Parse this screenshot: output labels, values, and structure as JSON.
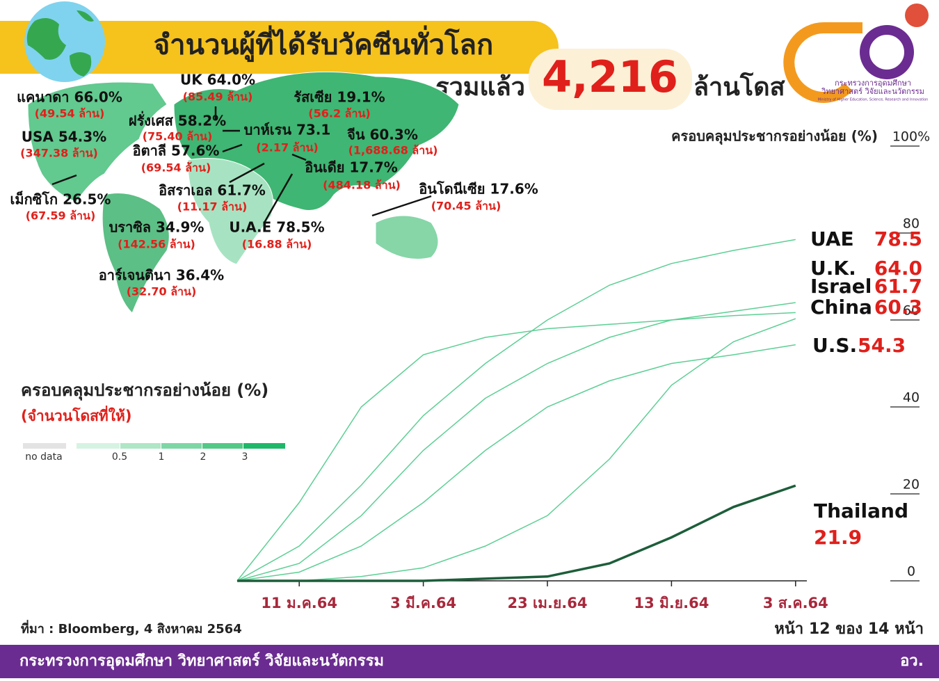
{
  "header": {
    "title": "จำนวนผู้ที่ได้รับวัคซีนทั่วโลก",
    "total_prefix": "รวมแล้ว",
    "total": "4,216",
    "total_unit": "ล้านโดส"
  },
  "logo": {
    "line1": "กระทรวงการอุดมศึกษา",
    "line2": "วิทยาศาสตร์ วิจัยและนวัตกรรม",
    "line3": "Ministry of Higher Education, Science, Research and Innovation"
  },
  "map": {
    "labels": [
      {
        "name": "UK 64.0%",
        "doses": "(85.49 ล้าน)"
      },
      {
        "name": "แคนาดา 66.0%",
        "doses": "(49.54 ล้าน)"
      },
      {
        "name": "รัสเซีย 19.1%",
        "doses": "(56.2 ล้าน)"
      },
      {
        "name": "ฝรั่งเศส 58.2%",
        "doses": "(75.40 ล้าน)"
      },
      {
        "name": "USA 54.3%",
        "doses": "(347.38 ล้าน)"
      },
      {
        "name": "บาห์เรน 73.1",
        "doses": "(2.17 ล้าน)"
      },
      {
        "name": "จีน 60.3%",
        "doses": "(1,688.68 ล้าน)"
      },
      {
        "name": "อิตาลี 57.6%",
        "doses": "(69.54 ล้าน)"
      },
      {
        "name": "อินเดีย 17.7%",
        "doses": "(484.18 ล้าน)"
      },
      {
        "name": "อิสราเอล 61.7%",
        "doses": "(11.17 ล้าน)"
      },
      {
        "name": "อินโดนีเซีย 17.6%",
        "doses": "(70.45 ล้าน)"
      },
      {
        "name": "เม็กซิโก 26.5%",
        "doses": "(67.59 ล้าน)"
      },
      {
        "name": "บราซิล 34.9%",
        "doses": "(142.56 ล้าน)"
      },
      {
        "name": "U.A.E 78.5%",
        "doses": "(16.88 ล้าน)"
      },
      {
        "name": "อาร์เจนตินา 36.4%",
        "doses": "(32.70 ล้าน)"
      }
    ],
    "legend": {
      "title": "ครอบคลุมประชากรอย่างน้อย (%)",
      "subtitle": "(จำนวนโดสที่ให้)",
      "items": [
        "no data",
        "0.5",
        "1",
        "2",
        "3"
      ]
    }
  },
  "chart_data": {
    "type": "line",
    "title": "ครอบคลุมประชากรอย่างน้อย (%)",
    "categories": [
      null,
      "11 ม.ค.64",
      null,
      "3 มี.ค.64",
      null,
      "23 เม.ย.64",
      null,
      "13 มิ.ย.64",
      null,
      "3 ส.ค.64"
    ],
    "ylim": [
      0,
      100
    ],
    "yticks": [
      0,
      20,
      40,
      60,
      80,
      {
        "value": 100,
        "label": "100%"
      }
    ],
    "series": [
      {
        "name": "UAE",
        "color": "#5ccf94",
        "values": [
          0,
          8,
          22,
          38,
          50,
          60,
          68,
          73,
          76,
          78.5
        ]
      },
      {
        "name": "U.K.",
        "color": "#5ccf94",
        "values": [
          0,
          4,
          15,
          30,
          42,
          50,
          56,
          60,
          62,
          64.0
        ],
        "value_labels": [
          null,
          null,
          null,
          null,
          null,
          null,
          null,
          null,
          null,
          "64.0"
        ]
      },
      {
        "name": "Israel",
        "color": "#5ccf94",
        "values": [
          0,
          18,
          40,
          52,
          56,
          58,
          59,
          60,
          61,
          61.7
        ]
      },
      {
        "name": "China",
        "color": "#5ccf94",
        "values": [
          0,
          0,
          1,
          3,
          8,
          15,
          28,
          45,
          55,
          60.3
        ]
      },
      {
        "name": "U.S.",
        "color": "#5ccf94",
        "values": [
          0,
          2,
          8,
          18,
          30,
          40,
          46,
          50,
          52,
          54.3
        ]
      },
      {
        "name": "Thailand",
        "color": "#1d5e3a",
        "values": [
          0,
          0,
          0,
          0,
          0.5,
          1,
          4,
          10,
          17,
          21.9
        ]
      }
    ]
  },
  "footer": {
    "source": "ที่มา : Bloomberg, 4 สิงหาคม 2564",
    "page": "หน้า 12 ของ 14 หน้า",
    "ministry": "กระทรวงการอุดมศึกษา วิทยาศาสตร์ วิจัยและนวัตกรรม",
    "short": "อว."
  }
}
